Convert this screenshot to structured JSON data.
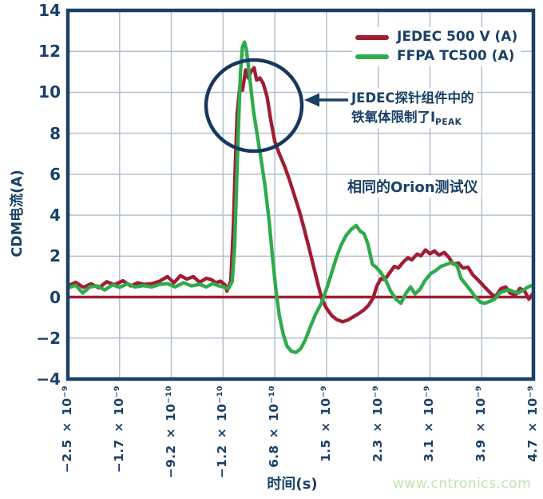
{
  "colors": {
    "navy": "#1b4066",
    "red": "#a01d33",
    "green": "#2fab4d",
    "grid": "#b4c0d0",
    "watermark_green": "#c2e3ad",
    "background": "#ffffff"
  },
  "legend": [
    {
      "label": "JEDEC 500 V (A)",
      "color": "#a01d33"
    },
    {
      "label": "FFPA TC500 (A)",
      "color": "#2fab4d"
    }
  ],
  "annotations": {
    "peak_note_line1": "JEDEC探针组件中的",
    "peak_note_line2": "铁氧体限制了I",
    "peak_note_subscript": "PEAK",
    "tester_note": "相同的Orion测试仪"
  },
  "watermark": "www.cntronics.com",
  "chart_data": {
    "type": "line",
    "title": "",
    "xlabel": "时间(s)",
    "ylabel": "CDM电流(A)",
    "ylim": [
      -4,
      14
    ],
    "xlim_ns": [
      -2.5,
      4.7
    ],
    "grid": true,
    "legend_position": "top-right",
    "ytick_labels": [
      "14",
      "12",
      "10",
      "8",
      "6",
      "4",
      "2",
      "0",
      "−2",
      "−4"
    ],
    "ytick_values": [
      14,
      12,
      10,
      8,
      6,
      4,
      2,
      0,
      -2,
      -4
    ],
    "xtick_labels": [
      "−2.5 × 10⁻⁹",
      "−1.7 × 10⁻⁹",
      "−9.2 × 10⁻¹⁰",
      "−1.2 × 10⁻¹⁰",
      "6.8 × 10⁻¹⁰",
      "1.5 × 10⁻⁹",
      "2.3 × 10⁻⁹",
      "3.1 × 10⁻⁹",
      "3.9 × 10⁻⁹",
      "4.7 × 10⁻⁹"
    ],
    "xtick_values_ns": [
      -2.5,
      -1.7,
      -0.92,
      -0.12,
      0.68,
      1.5,
      2.3,
      3.1,
      3.9,
      4.7
    ],
    "zero_line": {
      "value": 0,
      "color": "#a01d33"
    },
    "series": [
      {
        "name": "JEDEC 500 V (A)",
        "color": "#a01d33",
        "points_ns_amp": [
          [
            -2.5,
            0.55
          ],
          [
            -2.38,
            0.72
          ],
          [
            -2.26,
            0.48
          ],
          [
            -2.14,
            0.65
          ],
          [
            -2.02,
            0.45
          ],
          [
            -1.9,
            0.75
          ],
          [
            -1.78,
            0.6
          ],
          [
            -1.65,
            0.8
          ],
          [
            -1.53,
            0.55
          ],
          [
            -1.42,
            0.7
          ],
          [
            -1.32,
            0.62
          ],
          [
            -1.2,
            0.66
          ],
          [
            -1.08,
            0.78
          ],
          [
            -0.96,
            1.0
          ],
          [
            -0.86,
            0.7
          ],
          [
            -0.76,
            1.05
          ],
          [
            -0.66,
            0.88
          ],
          [
            -0.56,
            1.0
          ],
          [
            -0.46,
            0.72
          ],
          [
            -0.36,
            0.92
          ],
          [
            -0.28,
            0.85
          ],
          [
            -0.21,
            0.7
          ],
          [
            -0.14,
            0.78
          ],
          [
            -0.07,
            0.6
          ],
          [
            -0.04,
            0.3
          ],
          [
            0.02,
            0.8
          ],
          [
            0.06,
            3.5
          ],
          [
            0.09,
            6.5
          ],
          [
            0.12,
            9.0
          ],
          [
            0.16,
            10.3
          ],
          [
            0.2,
            10.1
          ],
          [
            0.25,
            11.1
          ],
          [
            0.29,
            10.7
          ],
          [
            0.33,
            11.0
          ],
          [
            0.38,
            11.2
          ],
          [
            0.42,
            10.6
          ],
          [
            0.47,
            10.7
          ],
          [
            0.52,
            10.45
          ],
          [
            0.58,
            9.8
          ],
          [
            0.64,
            8.6
          ],
          [
            0.7,
            7.6
          ],
          [
            0.77,
            7.0
          ],
          [
            0.85,
            6.4
          ],
          [
            0.93,
            5.7
          ],
          [
            1.0,
            5.0
          ],
          [
            1.08,
            4.2
          ],
          [
            1.15,
            3.4
          ],
          [
            1.23,
            2.4
          ],
          [
            1.3,
            1.5
          ],
          [
            1.37,
            0.6
          ],
          [
            1.43,
            -0.1
          ],
          [
            1.5,
            -0.55
          ],
          [
            1.58,
            -0.9
          ],
          [
            1.66,
            -1.1
          ],
          [
            1.75,
            -1.2
          ],
          [
            1.83,
            -1.12
          ],
          [
            1.92,
            -0.95
          ],
          [
            2.0,
            -0.8
          ],
          [
            2.08,
            -0.62
          ],
          [
            2.15,
            -0.4
          ],
          [
            2.22,
            -0.05
          ],
          [
            2.28,
            0.55
          ],
          [
            2.34,
            0.9
          ],
          [
            2.4,
            0.85
          ],
          [
            2.48,
            1.2
          ],
          [
            2.55,
            1.5
          ],
          [
            2.61,
            1.42
          ],
          [
            2.69,
            1.72
          ],
          [
            2.76,
            1.92
          ],
          [
            2.82,
            1.82
          ],
          [
            2.9,
            2.1
          ],
          [
            2.96,
            2.02
          ],
          [
            3.03,
            2.3
          ],
          [
            3.1,
            2.12
          ],
          [
            3.17,
            2.25
          ],
          [
            3.24,
            2.05
          ],
          [
            3.32,
            2.18
          ],
          [
            3.39,
            1.95
          ],
          [
            3.46,
            1.62
          ],
          [
            3.54,
            1.66
          ],
          [
            3.61,
            1.42
          ],
          [
            3.69,
            1.46
          ],
          [
            3.76,
            1.1
          ],
          [
            3.83,
            0.88
          ],
          [
            3.91,
            0.62
          ],
          [
            3.98,
            0.38
          ],
          [
            4.06,
            0.12
          ],
          [
            4.12,
            0.05
          ],
          [
            4.2,
            0.42
          ],
          [
            4.27,
            0.5
          ],
          [
            4.34,
            0.2
          ],
          [
            4.42,
            0.1
          ],
          [
            4.49,
            0.42
          ],
          [
            4.56,
            0.32
          ],
          [
            4.63,
            -0.1
          ],
          [
            4.7,
            0.22
          ]
        ]
      },
      {
        "name": "FFPA TC500 (A)",
        "color": "#2fab4d",
        "points_ns_amp": [
          [
            -2.5,
            0.45
          ],
          [
            -2.38,
            0.58
          ],
          [
            -2.27,
            0.2
          ],
          [
            -2.16,
            0.5
          ],
          [
            -2.05,
            0.55
          ],
          [
            -1.93,
            0.35
          ],
          [
            -1.81,
            0.6
          ],
          [
            -1.7,
            0.48
          ],
          [
            -1.58,
            0.65
          ],
          [
            -1.46,
            0.5
          ],
          [
            -1.33,
            0.56
          ],
          [
            -1.2,
            0.5
          ],
          [
            -1.08,
            0.62
          ],
          [
            -0.96,
            0.66
          ],
          [
            -0.84,
            0.5
          ],
          [
            -0.71,
            0.7
          ],
          [
            -0.59,
            0.55
          ],
          [
            -0.46,
            0.62
          ],
          [
            -0.36,
            0.5
          ],
          [
            -0.26,
            0.66
          ],
          [
            -0.16,
            0.55
          ],
          [
            -0.07,
            0.48
          ],
          [
            -0.02,
            0.4
          ],
          [
            0.04,
            0.75
          ],
          [
            0.08,
            2.5
          ],
          [
            0.11,
            5.5
          ],
          [
            0.14,
            8.5
          ],
          [
            0.17,
            11.0
          ],
          [
            0.2,
            12.2
          ],
          [
            0.23,
            12.45
          ],
          [
            0.26,
            12.1
          ],
          [
            0.31,
            10.8
          ],
          [
            0.37,
            9.1
          ],
          [
            0.43,
            7.9
          ],
          [
            0.49,
            6.7
          ],
          [
            0.55,
            5.4
          ],
          [
            0.61,
            3.8
          ],
          [
            0.67,
            1.8
          ],
          [
            0.72,
            0.3
          ],
          [
            0.77,
            -0.9
          ],
          [
            0.83,
            -1.8
          ],
          [
            0.89,
            -2.4
          ],
          [
            0.96,
            -2.65
          ],
          [
            1.03,
            -2.7
          ],
          [
            1.1,
            -2.52
          ],
          [
            1.17,
            -2.1
          ],
          [
            1.25,
            -1.45
          ],
          [
            1.33,
            -0.85
          ],
          [
            1.42,
            -0.3
          ],
          [
            1.5,
            0.4
          ],
          [
            1.57,
            1.1
          ],
          [
            1.65,
            1.9
          ],
          [
            1.72,
            2.5
          ],
          [
            1.8,
            3.0
          ],
          [
            1.88,
            3.3
          ],
          [
            1.96,
            3.5
          ],
          [
            2.02,
            3.22
          ],
          [
            2.08,
            3.1
          ],
          [
            2.14,
            2.6
          ],
          [
            2.21,
            1.6
          ],
          [
            2.27,
            1.45
          ],
          [
            2.34,
            1.2
          ],
          [
            2.42,
            0.8
          ],
          [
            2.49,
            0.3
          ],
          [
            2.58,
            -0.12
          ],
          [
            2.65,
            -0.3
          ],
          [
            2.73,
            0.2
          ],
          [
            2.8,
            0.5
          ],
          [
            2.87,
            0.15
          ],
          [
            2.95,
            0.4
          ],
          [
            3.02,
            0.8
          ],
          [
            3.11,
            1.15
          ],
          [
            3.19,
            1.3
          ],
          [
            3.27,
            1.5
          ],
          [
            3.36,
            1.6
          ],
          [
            3.44,
            1.7
          ],
          [
            3.52,
            1.52
          ],
          [
            3.58,
            0.92
          ],
          [
            3.66,
            0.6
          ],
          [
            3.73,
            0.32
          ],
          [
            3.8,
            0.02
          ],
          [
            3.88,
            -0.25
          ],
          [
            3.95,
            -0.3
          ],
          [
            4.03,
            -0.2
          ],
          [
            4.1,
            -0.1
          ],
          [
            4.18,
            0.2
          ],
          [
            4.25,
            0.3
          ],
          [
            4.32,
            0.36
          ],
          [
            4.4,
            0.26
          ],
          [
            4.47,
            0.2
          ],
          [
            4.55,
            0.36
          ],
          [
            4.62,
            0.5
          ],
          [
            4.7,
            0.6
          ]
        ]
      }
    ]
  }
}
